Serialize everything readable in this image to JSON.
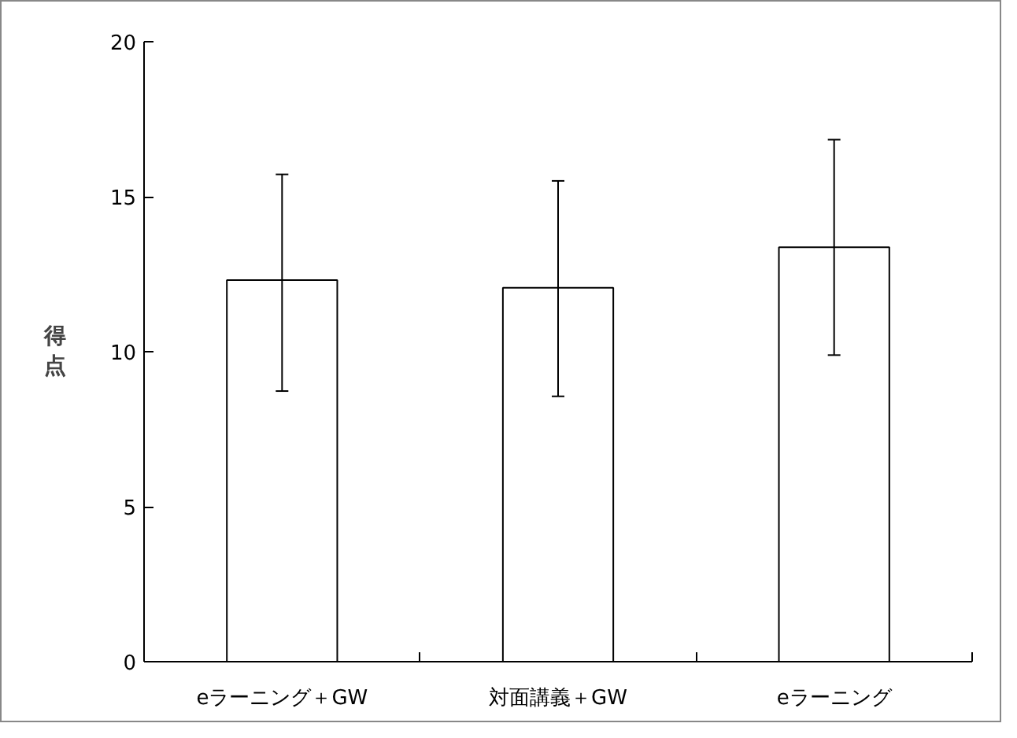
{
  "chart_data": {
    "type": "bar",
    "ylabel": "得点",
    "categories": [
      "eラーニング＋GW",
      "対面講義＋GW",
      "eラーニング"
    ],
    "values": [
      12.31,
      12.06,
      13.37
    ],
    "color": "#ffffff",
    "errors": [
      [
        8.73,
        15.72
      ],
      [
        8.56,
        15.51
      ],
      [
        9.89,
        16.84
      ]
    ],
    "ylim": [
      0,
      20
    ],
    "yticks": [
      0,
      5,
      10,
      15,
      20
    ],
    "grid": false
  }
}
